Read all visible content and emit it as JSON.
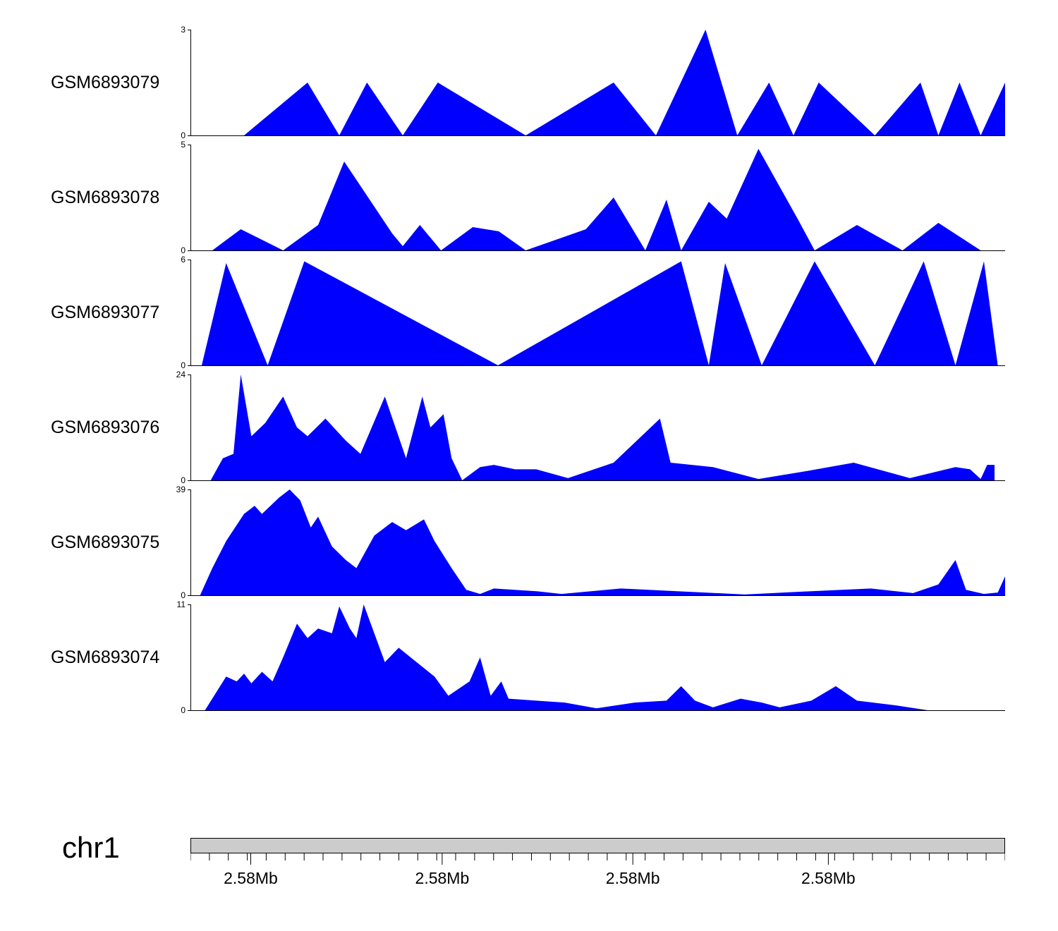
{
  "figure": {
    "background": "#ffffff",
    "fill_color": "#0000FF",
    "ideogram_color": "#cccccc"
  },
  "chart_data": {
    "type": "area",
    "title": "",
    "y_zero_label": "0",
    "tracks": [
      {
        "label": "GSM6893079",
        "ymax": 3,
        "x": [
          0,
          0.065,
          0.143,
          0.182,
          0.216,
          0.26,
          0.303,
          0.411,
          0.519,
          0.571,
          0.632,
          0.671,
          0.71,
          0.74,
          0.771,
          0.84,
          0.896,
          0.918,
          0.944,
          0.97,
          1.0
        ],
        "y": [
          0,
          0,
          1.5,
          0,
          1.5,
          0,
          1.5,
          0,
          1.5,
          0,
          3,
          0,
          1.5,
          0,
          1.5,
          0,
          1.5,
          0,
          1.5,
          0,
          1.5
        ]
      },
      {
        "label": "GSM6893078",
        "ymax": 5,
        "x": [
          0.026,
          0.061,
          0.113,
          0.156,
          0.188,
          0.247,
          0.26,
          0.281,
          0.307,
          0.346,
          0.378,
          0.411,
          0.485,
          0.519,
          0.558,
          0.584,
          0.602,
          0.636,
          0.658,
          0.697,
          0.745,
          0.766,
          0.818,
          0.874,
          0.918,
          0.97
        ],
        "y": [
          0,
          1,
          0,
          1.2,
          4.2,
          0.8,
          0.2,
          1.2,
          0,
          1.1,
          0.9,
          0,
          1,
          2.5,
          0,
          2.4,
          0,
          2.3,
          1.5,
          4.8,
          1.5,
          0,
          1.2,
          0,
          1.3,
          0
        ]
      },
      {
        "label": "GSM6893077",
        "ymax": 6,
        "x": [
          0.013,
          0.043,
          0.094,
          0.139,
          0.377,
          0.602,
          0.636,
          0.656,
          0.701,
          0.766,
          0.84,
          0.9,
          0.939,
          0.974,
          0.991
        ],
        "y": [
          0,
          5.8,
          0,
          5.9,
          0,
          5.9,
          0,
          5.8,
          0,
          5.9,
          0,
          5.9,
          0,
          5.9,
          0
        ]
      },
      {
        "label": "GSM6893076",
        "ymax": 24,
        "x": [
          0.024,
          0.039,
          0.052,
          0.061,
          0.074,
          0.091,
          0.113,
          0.13,
          0.143,
          0.165,
          0.19,
          0.208,
          0.238,
          0.251,
          0.264,
          0.284,
          0.294,
          0.31,
          0.32,
          0.333,
          0.355,
          0.372,
          0.398,
          0.424,
          0.463,
          0.519,
          0.576,
          0.589,
          0.641,
          0.697,
          0.753,
          0.814,
          0.883,
          0.939,
          0.957,
          0.97,
          0.978,
          0.987
        ],
        "y": [
          0,
          5,
          6,
          24,
          10,
          13,
          19,
          12,
          10,
          14,
          9,
          6,
          19,
          12,
          5,
          19,
          12,
          15,
          5,
          0,
          3,
          3.5,
          2.5,
          2.5,
          0.5,
          4,
          14,
          4,
          3,
          0.3,
          2,
          4,
          0.5,
          3,
          2.5,
          0.3,
          3.5,
          3.5
        ]
      },
      {
        "label": "GSM6893075",
        "ymax": 39,
        "x": [
          0.011,
          0.026,
          0.043,
          0.065,
          0.078,
          0.087,
          0.108,
          0.121,
          0.134,
          0.147,
          0.156,
          0.173,
          0.19,
          0.203,
          0.225,
          0.247,
          0.264,
          0.286,
          0.299,
          0.32,
          0.338,
          0.355,
          0.372,
          0.424,
          0.455,
          0.528,
          0.597,
          0.68,
          0.762,
          0.835,
          0.887,
          0.918,
          0.939,
          0.952,
          0.974,
          0.991,
          1.0
        ],
        "y": [
          0,
          10,
          20,
          30,
          33,
          30,
          36,
          39,
          35,
          25,
          29,
          18,
          13,
          10,
          22,
          27,
          24,
          28,
          20,
          10,
          2,
          0.5,
          2.5,
          1.5,
          0.5,
          2.5,
          1.5,
          0.3,
          1.5,
          2.5,
          0.8,
          4,
          13,
          2,
          0.5,
          1,
          7
        ]
      },
      {
        "label": "GSM6893074",
        "ymax": 11,
        "x": [
          0.017,
          0.043,
          0.056,
          0.065,
          0.074,
          0.087,
          0.1,
          0.113,
          0.13,
          0.143,
          0.156,
          0.173,
          0.182,
          0.195,
          0.203,
          0.212,
          0.225,
          0.238,
          0.255,
          0.277,
          0.299,
          0.316,
          0.342,
          0.355,
          0.368,
          0.381,
          0.39,
          0.424,
          0.459,
          0.498,
          0.545,
          0.584,
          0.602,
          0.619,
          0.641,
          0.675,
          0.701,
          0.723,
          0.762,
          0.792,
          0.818,
          0.866,
          0.905
        ],
        "y": [
          0,
          3.5,
          3,
          3.8,
          2.8,
          4,
          3,
          5.5,
          9,
          7.5,
          8.5,
          8,
          10.8,
          8.5,
          7.5,
          11,
          8,
          5,
          6.5,
          5,
          3.5,
          1.5,
          3,
          5.5,
          1.5,
          3,
          1.2,
          1,
          0.8,
          0.2,
          0.8,
          1,
          2.5,
          1,
          0.3,
          1.2,
          0.8,
          0.3,
          1,
          2.5,
          1,
          0.5,
          0
        ]
      }
    ],
    "xaxis": {
      "chrom": "chr1",
      "tick_labels": [
        "2.58Mb",
        "2.58Mb",
        "2.58Mb",
        "2.58Mb"
      ],
      "tick_positions": [
        0.074,
        0.309,
        0.543,
        0.783
      ],
      "minor_tick_count": 43
    }
  }
}
